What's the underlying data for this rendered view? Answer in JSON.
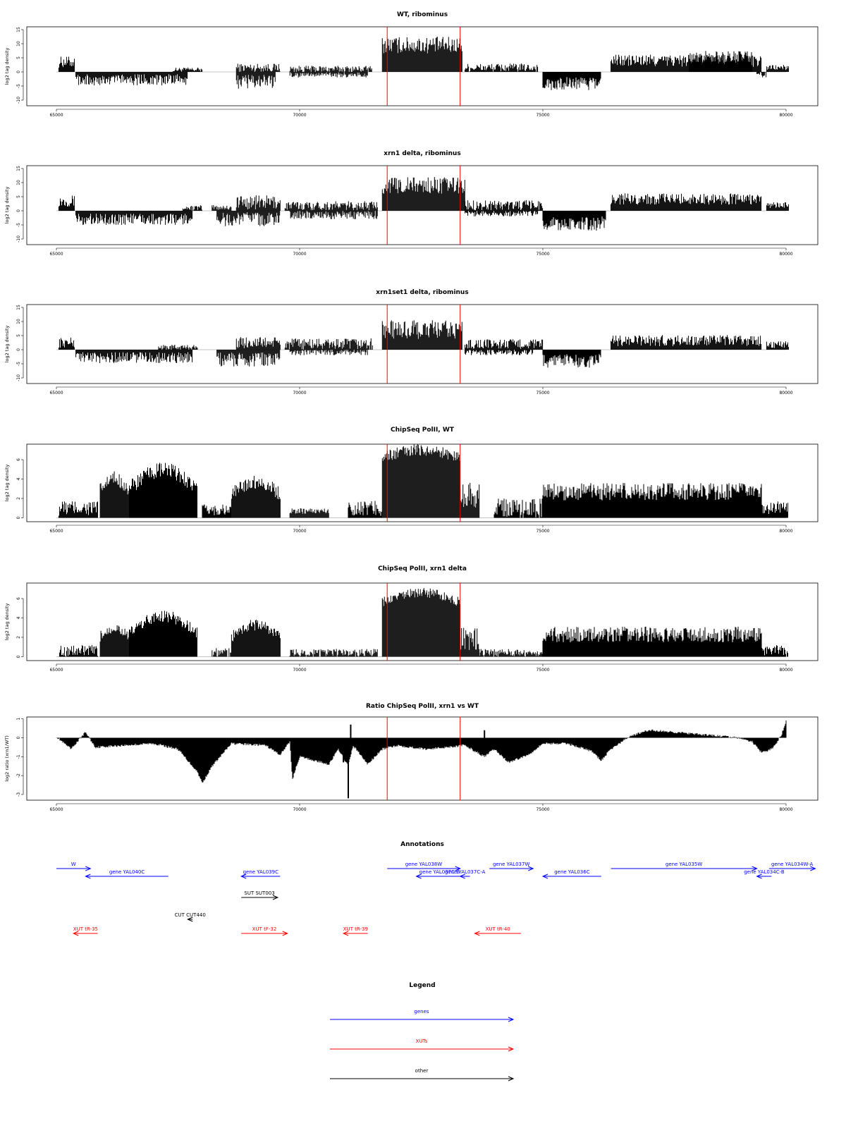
{
  "colors": {
    "gene": "#0000ff",
    "xut": "#ff0000",
    "other": "#000000",
    "marker": "#ff0000",
    "bars": "#000000"
  },
  "chart_data": [
    {
      "type": "bar",
      "title": "WT, ribominus",
      "ylabel": "log2 tag density",
      "xlim": [
        65000,
        80000
      ],
      "x_ticks": [
        "65000",
        "70000",
        "75000",
        "80000"
      ],
      "ylim": [
        -12,
        16
      ],
      "y_ticks": [
        "-10",
        "-5",
        "0",
        "5",
        "10",
        "15"
      ],
      "markers": [
        71800,
        73300
      ],
      "series": [
        {
          "strand": "plus",
          "segments": [
            {
              "x": [
                65050,
                65380
              ],
              "level": 3.5,
              "noise": 2
            },
            {
              "x": [
                67400,
                68000
              ],
              "level": 0.8,
              "noise": 0.8
            },
            {
              "x": [
                68700,
                69600
              ],
              "level": 1.5,
              "noise": 1.5
            },
            {
              "x": [
                69800,
                71500
              ],
              "level": 1.0,
              "noise": 1.2
            },
            {
              "x": [
                71700,
                73350
              ],
              "level": 9.5,
              "noise": 3
            },
            {
              "x": [
                73400,
                74900
              ],
              "level": 1.5,
              "noise": 1.5
            },
            {
              "x": [
                76400,
                79500
              ],
              "level": 4.0,
              "noise": 2.2
            },
            {
              "x": [
                78000,
                79300
              ],
              "level": 5.0,
              "noise": 2.5
            },
            {
              "x": [
                79600,
                80050
              ],
              "level": 1.5,
              "noise": 1
            }
          ]
        },
        {
          "strand": "minus",
          "segments": [
            {
              "x": [
                65400,
                67700
              ],
              "level": -2.8,
              "noise": 2
            },
            {
              "x": [
                68700,
                69500
              ],
              "level": -3.5,
              "noise": 2.5
            },
            {
              "x": [
                69800,
                71400
              ],
              "level": -1.0,
              "noise": 1
            },
            {
              "x": [
                75000,
                76200
              ],
              "level": -4.0,
              "noise": 2.5
            },
            {
              "x": [
                79400,
                79600
              ],
              "level": -1.0,
              "noise": 1
            }
          ]
        }
      ]
    },
    {
      "type": "bar",
      "title": "xrn1 delta, ribominus",
      "ylabel": "log2 tag density",
      "xlim": [
        65000,
        80000
      ],
      "x_ticks": [
        "65000",
        "70000",
        "75000",
        "80000"
      ],
      "ylim": [
        -12,
        16
      ],
      "y_ticks": [
        "-10",
        "-5",
        "0",
        "5",
        "10",
        "15"
      ],
      "markers": [
        71800,
        73300
      ],
      "series": [
        {
          "strand": "plus",
          "segments": [
            {
              "x": [
                65050,
                65380
              ],
              "level": 3.5,
              "noise": 2
            },
            {
              "x": [
                67600,
                68000
              ],
              "level": 1.0,
              "noise": 1
            },
            {
              "x": [
                68200,
                68600
              ],
              "level": 1.2,
              "noise": 1
            },
            {
              "x": [
                68700,
                69600
              ],
              "level": 3.0,
              "noise": 2.5
            },
            {
              "x": [
                69700,
                71600
              ],
              "level": 1.8,
              "noise": 1.6
            },
            {
              "x": [
                71700,
                73400
              ],
              "level": 9.0,
              "noise": 3
            },
            {
              "x": [
                73400,
                75000
              ],
              "level": 2.0,
              "noise": 1.8
            },
            {
              "x": [
                76400,
                79500
              ],
              "level": 4.2,
              "noise": 2
            },
            {
              "x": [
                79600,
                80050
              ],
              "level": 2.0,
              "noise": 1
            }
          ]
        },
        {
          "strand": "minus",
          "segments": [
            {
              "x": [
                65400,
                67800
              ],
              "level": -3.0,
              "noise": 2
            },
            {
              "x": [
                68300,
                69600
              ],
              "level": -3.0,
              "noise": 2.5
            },
            {
              "x": [
                69800,
                71600
              ],
              "level": -1.5,
              "noise": 1.5
            },
            {
              "x": [
                73400,
                74900
              ],
              "level": -1.0,
              "noise": 1
            },
            {
              "x": [
                75000,
                76300
              ],
              "level": -4.5,
              "noise": 2.5
            }
          ]
        }
      ]
    },
    {
      "type": "bar",
      "title": "xrn1set1 delta, ribominus",
      "ylabel": "log2 tag density",
      "xlim": [
        65000,
        80000
      ],
      "x_ticks": [
        "65000",
        "70000",
        "75000",
        "80000"
      ],
      "ylim": [
        -12,
        16
      ],
      "y_ticks": [
        "-10",
        "-5",
        "0",
        "5",
        "10",
        "15"
      ],
      "markers": [
        71800,
        73300
      ],
      "series": [
        {
          "strand": "plus",
          "segments": [
            {
              "x": [
                65050,
                65380
              ],
              "level": 2.5,
              "noise": 1.8
            },
            {
              "x": [
                67100,
                67900
              ],
              "level": 0.8,
              "noise": 1
            },
            {
              "x": [
                68700,
                69600
              ],
              "level": 2.5,
              "noise": 2
            },
            {
              "x": [
                69700,
                71500
              ],
              "level": 2.0,
              "noise": 2
            },
            {
              "x": [
                71700,
                73350
              ],
              "level": 7.0,
              "noise": 3.5
            },
            {
              "x": [
                73400,
                75000
              ],
              "level": 2.0,
              "noise": 1.8
            },
            {
              "x": [
                76400,
                79500
              ],
              "level": 3.2,
              "noise": 2
            },
            {
              "x": [
                79600,
                80050
              ],
              "level": 1.8,
              "noise": 1.2
            }
          ]
        },
        {
          "strand": "minus",
          "segments": [
            {
              "x": [
                65400,
                67800
              ],
              "level": -2.8,
              "noise": 2
            },
            {
              "x": [
                68300,
                69600
              ],
              "level": -3.5,
              "noise": 2.5
            },
            {
              "x": [
                69800,
                71400
              ],
              "level": -1.0,
              "noise": 1
            },
            {
              "x": [
                73400,
                74800
              ],
              "level": -1.0,
              "noise": 1
            },
            {
              "x": [
                75000,
                76200
              ],
              "level": -4.0,
              "noise": 2.5
            }
          ]
        }
      ]
    },
    {
      "type": "bar",
      "title": "ChipSeq PolII, WT",
      "ylabel": "log2 tag density",
      "xlim": [
        65000,
        80000
      ],
      "x_ticks": [
        "65000",
        "70000",
        "75000",
        "80000"
      ],
      "ylim": [
        -0.4,
        7.6
      ],
      "y_ticks": [
        "0",
        "2",
        "4",
        "6"
      ],
      "markers": [
        71800,
        73300
      ],
      "series": [
        {
          "strand": "plus",
          "segments": [
            {
              "x": [
                65050,
                65850
              ],
              "level": 1.0,
              "noise": 0.8
            },
            {
              "x": [
                65900,
                66500
              ],
              "level": 2.8,
              "noise": 0.8,
              "dome": 1.2
            },
            {
              "x": [
                66500,
                67900
              ],
              "level": 3.0,
              "noise": 0.8,
              "dome": 1.9
            },
            {
              "x": [
                68000,
                68600
              ],
              "level": 0.8,
              "noise": 0.6
            },
            {
              "x": [
                68600,
                69600
              ],
              "level": 2.4,
              "noise": 0.7,
              "dome": 1.3
            },
            {
              "x": [
                69800,
                70600
              ],
              "level": 0.7,
              "noise": 0.3
            },
            {
              "x": [
                71000,
                71700
              ],
              "level": 1.0,
              "noise": 0.8
            },
            {
              "x": [
                71700,
                73300
              ],
              "level": 6.2,
              "noise": 0.6,
              "dome": 0.8
            },
            {
              "x": [
                73300,
                73700
              ],
              "level": 2.5,
              "noise": 1.5
            },
            {
              "x": [
                74000,
                75000
              ],
              "level": 1.0,
              "noise": 1
            },
            {
              "x": [
                75000,
                79500
              ],
              "level": 2.7,
              "noise": 0.9
            },
            {
              "x": [
                79500,
                80050
              ],
              "level": 1.0,
              "noise": 0.7
            }
          ]
        }
      ]
    },
    {
      "type": "bar",
      "title": "ChipSeq PolII, xrn1 delta",
      "ylabel": "log2 tag density",
      "xlim": [
        65000,
        80000
      ],
      "x_ticks": [
        "65000",
        "70000",
        "75000",
        "80000"
      ],
      "ylim": [
        -0.4,
        7.6
      ],
      "y_ticks": [
        "0",
        "2",
        "4",
        "6"
      ],
      "markers": [
        71800,
        73300
      ],
      "series": [
        {
          "strand": "plus",
          "segments": [
            {
              "x": [
                65050,
                65850
              ],
              "level": 0.6,
              "noise": 0.6
            },
            {
              "x": [
                65900,
                66500
              ],
              "level": 2.0,
              "noise": 0.6,
              "dome": 1.0
            },
            {
              "x": [
                66500,
                67900
              ],
              "level": 2.4,
              "noise": 0.6,
              "dome": 1.8
            },
            {
              "x": [
                68200,
                68600
              ],
              "level": 0.4,
              "noise": 0.5
            },
            {
              "x": [
                68600,
                69600
              ],
              "level": 2.0,
              "noise": 0.6,
              "dome": 1.3
            },
            {
              "x": [
                69800,
                71600
              ],
              "level": 0.4,
              "noise": 0.4
            },
            {
              "x": [
                71700,
                73300
              ],
              "level": 5.6,
              "noise": 0.5,
              "dome": 1.0
            },
            {
              "x": [
                73300,
                73700
              ],
              "level": 1.8,
              "noise": 1.2
            },
            {
              "x": [
                73700,
                75000
              ],
              "level": 0.4,
              "noise": 0.4
            },
            {
              "x": [
                75000,
                79500
              ],
              "level": 2.3,
              "noise": 0.8
            },
            {
              "x": [
                79500,
                80050
              ],
              "level": 0.6,
              "noise": 0.6
            }
          ]
        }
      ]
    },
    {
      "type": "area",
      "title": "Ratio ChipSeq PolII, xrn1 vs WT",
      "ylabel": "log2 ratio (xrn1/WT)",
      "xlim": [
        65000,
        80000
      ],
      "x_ticks": [
        "65000",
        "70000",
        "75000",
        "80000"
      ],
      "ylim": [
        -3.3,
        1.1
      ],
      "y_ticks": [
        "-3",
        "-2",
        "-1",
        "0",
        "1"
      ],
      "markers": [
        71800,
        73300
      ],
      "points": [
        [
          65000,
          0.05
        ],
        [
          65300,
          -0.6
        ],
        [
          65600,
          0.3
        ],
        [
          65800,
          -0.5
        ],
        [
          66400,
          -0.4
        ],
        [
          67000,
          -0.3
        ],
        [
          67500,
          -0.6
        ],
        [
          67900,
          -1.8
        ],
        [
          68000,
          -2.4
        ],
        [
          68200,
          -1.5
        ],
        [
          68600,
          -0.3
        ],
        [
          69300,
          -0.4
        ],
        [
          69600,
          -0.9
        ],
        [
          69800,
          -0.2
        ],
        [
          69850,
          -2.2
        ],
        [
          70000,
          -1.0
        ],
        [
          70300,
          -1.2
        ],
        [
          70600,
          -1.4
        ],
        [
          70800,
          -0.6
        ],
        [
          71000,
          -1.5
        ],
        [
          71100,
          -0.4
        ],
        [
          71400,
          -1.4
        ],
        [
          71700,
          -0.6
        ],
        [
          72000,
          -0.4
        ],
        [
          72600,
          -0.6
        ],
        [
          73000,
          -0.5
        ],
        [
          73400,
          -0.4
        ],
        [
          73800,
          -1.0
        ],
        [
          74000,
          -0.6
        ],
        [
          74300,
          -1.3
        ],
        [
          74700,
          -0.9
        ],
        [
          75000,
          -0.3
        ],
        [
          75500,
          -0.3
        ],
        [
          76000,
          -0.7
        ],
        [
          76200,
          -1.2
        ],
        [
          76400,
          -0.6
        ],
        [
          76800,
          0.1
        ],
        [
          77200,
          0.4
        ],
        [
          77700,
          0.3
        ],
        [
          78100,
          0.2
        ],
        [
          78600,
          0.1
        ],
        [
          79000,
          0.0
        ],
        [
          79300,
          -0.2
        ],
        [
          79500,
          -0.8
        ],
        [
          79700,
          -0.6
        ],
        [
          79900,
          0.1
        ],
        [
          80000,
          0.9
        ]
      ],
      "spikes": [
        [
          71050,
          0.7
        ],
        [
          71000,
          -3.2
        ],
        [
          70900,
          -1.3
        ],
        [
          73800,
          0.4
        ]
      ]
    }
  ],
  "annotations": {
    "title": "Annotations",
    "genes": [
      {
        "label": "W",
        "start": 65000,
        "end": 65700,
        "strand": "+",
        "row": 0
      },
      {
        "label": "gene YAL040C",
        "start": 65600,
        "end": 67300,
        "strand": "-",
        "row": 1
      },
      {
        "label": "gene YAL039C",
        "start": 68800,
        "end": 69600,
        "strand": "-",
        "row": 1
      },
      {
        "label": "gene YAL038W",
        "start": 71800,
        "end": 73300,
        "strand": "+",
        "row": 0
      },
      {
        "label": "gene YAL037C-B",
        "start": 72400,
        "end": 73350,
        "strand": "-",
        "row": 1
      },
      {
        "label": "gene YAL037C-A",
        "start": 73300,
        "end": 73500,
        "strand": "-",
        "row": 1
      },
      {
        "label": "gene YAL037W",
        "start": 73900,
        "end": 74800,
        "strand": "+",
        "row": 0
      },
      {
        "label": "gene YAL036C",
        "start": 75000,
        "end": 76200,
        "strand": "-",
        "row": 1
      },
      {
        "label": "gene YAL035W",
        "start": 76400,
        "end": 79400,
        "strand": "+",
        "row": 0
      },
      {
        "label": "gene YAL034C-B",
        "start": 79400,
        "end": 79700,
        "strand": "-",
        "row": 1
      },
      {
        "label": "gene YAL034W-A",
        "start": 79650,
        "end": 80600,
        "strand": "+",
        "row": 0
      }
    ],
    "others": [
      {
        "label": "SUT SUT003",
        "start": 68800,
        "end": 69550,
        "strand": "+"
      },
      {
        "label": "CUT CUT440",
        "start": 67700,
        "end": 67800,
        "strand": "-"
      }
    ],
    "xuts": [
      {
        "label": "XUT tR-35",
        "start": 65350,
        "end": 65850,
        "strand": "-"
      },
      {
        "label": "XUT tF-32",
        "start": 68800,
        "end": 69750,
        "strand": "+"
      },
      {
        "label": "XUT tR-39",
        "start": 70900,
        "end": 71400,
        "strand": "-"
      },
      {
        "label": "XUT tR-40",
        "start": 73600,
        "end": 74550,
        "strand": "-"
      }
    ]
  },
  "legend": {
    "title": "Legend",
    "items": [
      {
        "label": "genes",
        "color": "#0000ff"
      },
      {
        "label": "XUTs",
        "color": "#ff0000"
      },
      {
        "label": "other",
        "color": "#000000"
      }
    ]
  }
}
